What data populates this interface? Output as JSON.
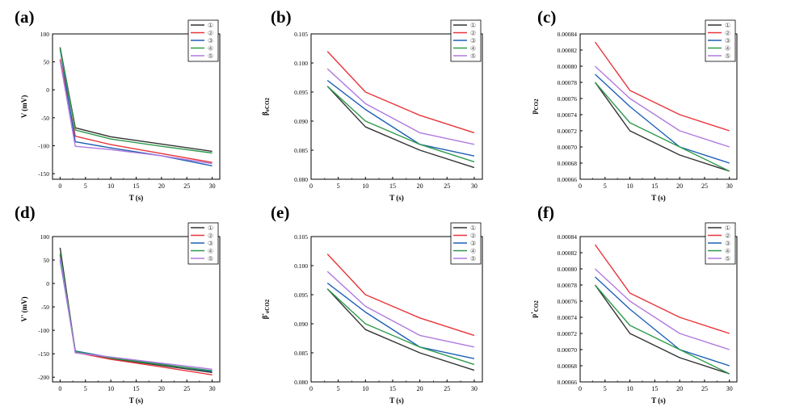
{
  "colors": {
    "series_1": "#333333",
    "series_2": "#e8353a",
    "series_3": "#1e60b5",
    "series_4": "#2e9a4c",
    "series_5": "#b07ae0"
  },
  "chart_data": [
    {
      "type": "line",
      "panel": "(a)",
      "xlabel": "T (s)",
      "ylabel": "V (mV)",
      "xlim": [
        -1.5,
        31.5
      ],
      "ylim": [
        -160,
        100
      ],
      "xticks": [
        "0",
        "5",
        "10",
        "15",
        "20",
        "25",
        "30"
      ],
      "yticks": [
        "100",
        "50",
        "0",
        "-50",
        "-100",
        "-150"
      ],
      "legend_position": "top-right",
      "x": [
        0,
        3,
        10,
        20,
        30
      ],
      "series": [
        {
          "name": "①",
          "values": [
            76,
            -68,
            -84,
            -97,
            -110
          ]
        },
        {
          "name": "②",
          "values": [
            55,
            -83,
            -98,
            -114,
            -130
          ]
        },
        {
          "name": "③",
          "values": [
            73,
            -93,
            -104,
            -118,
            -136
          ]
        },
        {
          "name": "④",
          "values": [
            74,
            -72,
            -88,
            -101,
            -113
          ]
        },
        {
          "name": "⑤",
          "values": [
            52,
            -101,
            -107,
            -118,
            -132
          ]
        }
      ]
    },
    {
      "type": "line",
      "panel": "(b)",
      "xlabel": "T (s)",
      "ylabel": "β",
      "ylabel_sub": "eCO2",
      "xlim": [
        0,
        31.5
      ],
      "ylim": [
        0.08,
        0.105
      ],
      "xticks": [
        "0",
        "5",
        "10",
        "15",
        "20",
        "25",
        "30"
      ],
      "yticks": [
        "0.105",
        "0.100",
        "0.095",
        "0.090",
        "0.085",
        "0.080"
      ],
      "legend_position": "top-right",
      "x": [
        3,
        10,
        20,
        30
      ],
      "series": [
        {
          "name": "①",
          "values": [
            0.096,
            0.089,
            0.085,
            0.082
          ]
        },
        {
          "name": "②",
          "values": [
            0.102,
            0.095,
            0.091,
            0.088
          ]
        },
        {
          "name": "③",
          "values": [
            0.097,
            0.092,
            0.086,
            0.084
          ]
        },
        {
          "name": "④",
          "values": [
            0.096,
            0.09,
            0.086,
            0.083
          ]
        },
        {
          "name": "⑤",
          "values": [
            0.099,
            0.093,
            0.088,
            0.086
          ]
        }
      ]
    },
    {
      "type": "line",
      "panel": "(c)",
      "xlabel": "T (s)",
      "ylabel": "p",
      "ylabel_sub": "CO2",
      "xlim": [
        0,
        31.5
      ],
      "ylim": [
        0.00066,
        0.00084
      ],
      "xticks": [
        "0",
        "5",
        "10",
        "15",
        "20",
        "25",
        "30"
      ],
      "yticks": [
        "0.00084",
        "0.00082",
        "0.00080",
        "0.00078",
        "0.00076",
        "0.00074",
        "0.00072",
        "0.00070",
        "0.00068",
        "0.00066"
      ],
      "legend_position": "top-right",
      "x": [
        3,
        10,
        20,
        30
      ],
      "series": [
        {
          "name": "①",
          "values": [
            0.00078,
            0.00072,
            0.00069,
            0.00067
          ]
        },
        {
          "name": "②",
          "values": [
            0.00083,
            0.00077,
            0.00074,
            0.00072
          ]
        },
        {
          "name": "③",
          "values": [
            0.00079,
            0.00075,
            0.0007,
            0.00068
          ]
        },
        {
          "name": "④",
          "values": [
            0.00078,
            0.00073,
            0.0007,
            0.00067
          ]
        },
        {
          "name": "⑤",
          "values": [
            0.0008,
            0.00076,
            0.00072,
            0.0007
          ]
        }
      ]
    },
    {
      "type": "line",
      "panel": "(d)",
      "xlabel": "T (s)",
      "ylabel": "V' (mV)",
      "xlim": [
        -1.5,
        31.5
      ],
      "ylim": [
        -210,
        100
      ],
      "xticks": [
        "0",
        "5",
        "10",
        "15",
        "20",
        "25",
        "30"
      ],
      "yticks": [
        "100",
        "50",
        "0",
        "-50",
        "-100",
        "-150",
        "-200"
      ],
      "legend_position": "top-right",
      "x": [
        0,
        3,
        10,
        20,
        30
      ],
      "series": [
        {
          "name": "①",
          "values": [
            76,
            -145,
            -160,
            -175,
            -190
          ]
        },
        {
          "name": "②",
          "values": [
            60,
            -147,
            -162,
            -178,
            -195
          ]
        },
        {
          "name": "③",
          "values": [
            50,
            -144,
            -158,
            -172,
            -188
          ]
        },
        {
          "name": "④",
          "values": [
            64,
            -145,
            -159,
            -173,
            -186
          ]
        },
        {
          "name": "⑤",
          "values": [
            55,
            -148,
            -157,
            -170,
            -183
          ]
        }
      ]
    },
    {
      "type": "line",
      "panel": "(e)",
      "xlabel": "T (s)",
      "ylabel": "β'",
      "ylabel_sub": "eCO2",
      "xlim": [
        0,
        31.5
      ],
      "ylim": [
        0.08,
        0.105
      ],
      "xticks": [
        "0",
        "5",
        "10",
        "15",
        "20",
        "25",
        "30"
      ],
      "yticks": [
        "0.105",
        "0.100",
        "0.095",
        "0.090",
        "0.085",
        "0.080"
      ],
      "legend_position": "top-right",
      "x": [
        3,
        10,
        20,
        30
      ],
      "series": [
        {
          "name": "①",
          "values": [
            0.096,
            0.089,
            0.085,
            0.082
          ]
        },
        {
          "name": "②",
          "values": [
            0.102,
            0.095,
            0.091,
            0.088
          ]
        },
        {
          "name": "③",
          "values": [
            0.097,
            0.092,
            0.086,
            0.084
          ]
        },
        {
          "name": "④",
          "values": [
            0.096,
            0.09,
            0.086,
            0.083
          ]
        },
        {
          "name": "⑤",
          "values": [
            0.099,
            0.093,
            0.088,
            0.086
          ]
        }
      ]
    },
    {
      "type": "line",
      "panel": "(f)",
      "xlabel": "T (s)",
      "ylabel": "p'",
      "ylabel_sub": "CO2",
      "xlim": [
        0,
        31.5
      ],
      "ylim": [
        0.00066,
        0.00084
      ],
      "xticks": [
        "0",
        "5",
        "10",
        "15",
        "20",
        "25",
        "30"
      ],
      "yticks": [
        "0.00084",
        "0.00082",
        "0.00080",
        "0.00078",
        "0.00076",
        "0.00074",
        "0.00072",
        "0.00070",
        "0.00068",
        "0.00066"
      ],
      "legend_position": "top-right",
      "x": [
        3,
        10,
        20,
        30
      ],
      "series": [
        {
          "name": "①",
          "values": [
            0.00078,
            0.00072,
            0.00069,
            0.00067
          ]
        },
        {
          "name": "②",
          "values": [
            0.00083,
            0.00077,
            0.00074,
            0.00072
          ]
        },
        {
          "name": "③",
          "values": [
            0.00079,
            0.00075,
            0.0007,
            0.00068
          ]
        },
        {
          "name": "④",
          "values": [
            0.00078,
            0.00073,
            0.0007,
            0.00067
          ]
        },
        {
          "name": "⑤",
          "values": [
            0.0008,
            0.00076,
            0.00072,
            0.0007
          ]
        }
      ]
    }
  ]
}
